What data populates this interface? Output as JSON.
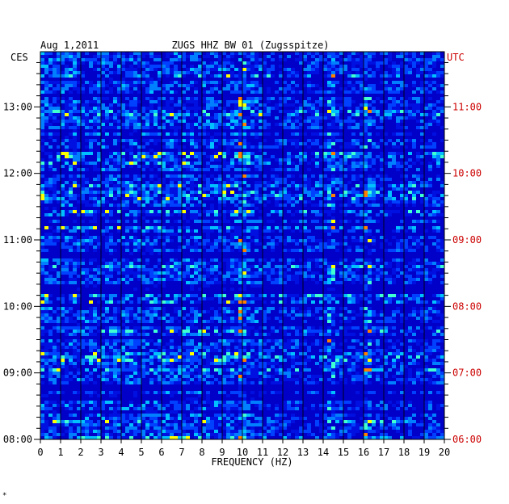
{
  "chart_data": {
    "type": "heatmap",
    "date": "Aug 1,2011",
    "title": "ZUGS HHZ BW 01 (Zugsspitze)",
    "xlabel": "FREQUENCY (HZ)",
    "xlim": [
      0,
      20
    ],
    "x_ticks": [
      "0",
      "1",
      "2",
      "3",
      "4",
      "5",
      "6",
      "7",
      "8",
      "9",
      "10",
      "11",
      "12",
      "13",
      "14",
      "15",
      "16",
      "17",
      "18",
      "19",
      "20"
    ],
    "left_axis_label": "CES",
    "right_axis_label": "UTC",
    "left_ticks": [
      {
        "label": "13:00",
        "hour": 13
      },
      {
        "label": "12:00",
        "hour": 12
      },
      {
        "label": "11:00",
        "hour": 11
      },
      {
        "label": "10:00",
        "hour": 10
      },
      {
        "label": "09:00",
        "hour": 9
      },
      {
        "label": "08:00",
        "hour": 8
      }
    ],
    "right_ticks": [
      {
        "label": "11:00",
        "hour": 11
      },
      {
        "label": "10:00",
        "hour": 10
      },
      {
        "label": "09:00",
        "hour": 9
      },
      {
        "label": "08:00",
        "hour": 8
      },
      {
        "label": "07:00",
        "hour": 7
      },
      {
        "label": "06:00",
        "hour": 6
      }
    ],
    "ylim_local_hours": [
      8,
      13.83
    ],
    "prominent_frequency_lines_hz": [
      9.8,
      14.3,
      16.1
    ],
    "colors": {
      "background": "#0000c8",
      "low": "#0033ff",
      "mid": "#00ccff",
      "high": "#ffff00",
      "peak": "#ff6600",
      "right_axis": "#cc0000",
      "axis": "#000000"
    }
  },
  "footer_mark": "*"
}
